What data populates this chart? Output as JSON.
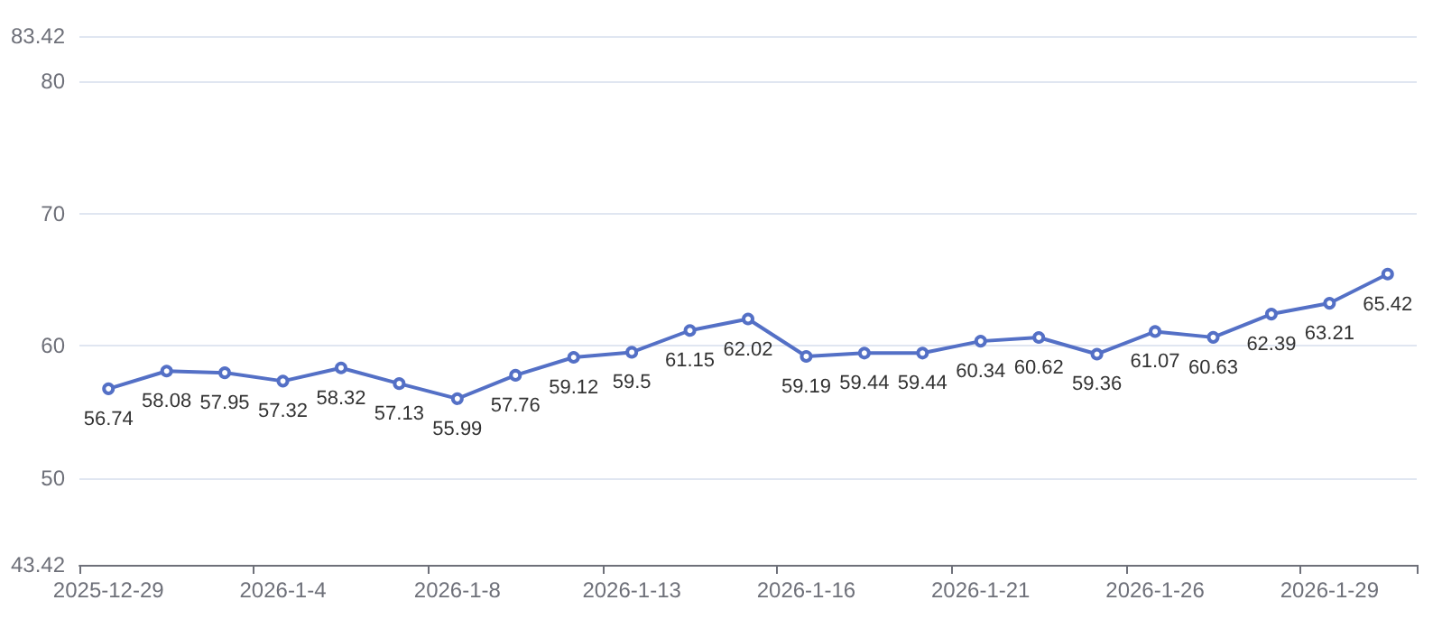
{
  "chart_data": {
    "type": "line",
    "categories": [
      "2025-12-29",
      null,
      null,
      "2026-1-4",
      null,
      null,
      "2026-1-8",
      null,
      null,
      "2026-1-13",
      null,
      null,
      "2026-1-16",
      null,
      null,
      "2026-1-21",
      null,
      null,
      "2026-1-26",
      null,
      null,
      "2026-1-29",
      null
    ],
    "series": [
      {
        "color": "#5470c6",
        "values": [
          56.74,
          58.08,
          57.95,
          57.32,
          58.32,
          57.13,
          55.99,
          57.76,
          59.12,
          59.5,
          61.15,
          62.02,
          59.19,
          59.44,
          59.44,
          60.34,
          60.62,
          59.36,
          61.07,
          60.63,
          62.39,
          63.21,
          65.42
        ]
      }
    ],
    "ylim": [
      43.42,
      83.42
    ],
    "yticks": [
      43.42,
      50,
      60,
      70,
      80,
      83.42
    ],
    "grid": "y",
    "marker": "circle",
    "line_style": "solid",
    "data_labels": true
  }
}
